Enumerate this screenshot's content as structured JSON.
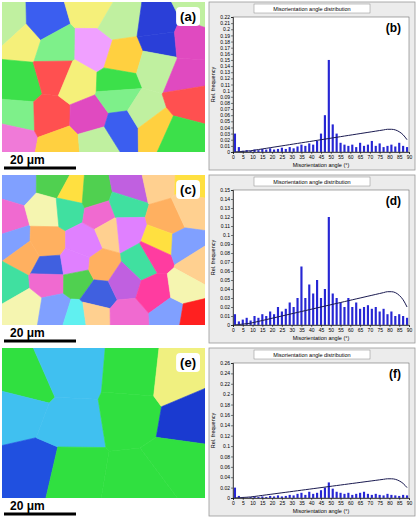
{
  "figure": {
    "maps": [
      {
        "label": "(a)",
        "scale_bar": "20 μm"
      },
      {
        "label": "(c)",
        "scale_bar": "20 μm"
      },
      {
        "label": "(e)",
        "scale_bar": "20 μm"
      }
    ]
  },
  "chart_data": [
    {
      "type": "bar",
      "title": "Misorientation angle distribution",
      "x_label": "Misorientation angle (°)",
      "y_label": "Rel. frequency",
      "annotations": [
        "(b)"
      ],
      "x": [
        1,
        3,
        5,
        7,
        9,
        11,
        13,
        15,
        17,
        19,
        21,
        23,
        25,
        27,
        29,
        31,
        33,
        35,
        37,
        39,
        41,
        43,
        45,
        47,
        49,
        51,
        53,
        55,
        57,
        59,
        61,
        63,
        65,
        67,
        69,
        71,
        73,
        75,
        77,
        79,
        81,
        83,
        85,
        87,
        89
      ],
      "series": [
        {
          "type": "bar",
          "color": "#2626d4",
          "values": [
            0.03,
            0.008,
            0.002,
            0.003,
            0.002,
            0.004,
            0.003,
            0.005,
            0.004,
            0.006,
            0.004,
            0.005,
            0.007,
            0.005,
            0.008,
            0.006,
            0.009,
            0.012,
            0.01,
            0.014,
            0.012,
            0.018,
            0.03,
            0.06,
            0.15,
            0.045,
            0.03,
            0.015,
            0.012,
            0.01,
            0.012,
            0.008,
            0.015,
            0.01,
            0.012,
            0.018,
            0.01,
            0.014,
            0.008,
            0.01,
            0.012,
            0.009,
            0.015,
            0.01,
            0.008
          ]
        },
        {
          "type": "line",
          "color": "#1a1a50",
          "values": [
            0.0001,
            0.0005,
            0.001,
            0.0015,
            0.002,
            0.003,
            0.004,
            0.005,
            0.006,
            0.007,
            0.008,
            0.009,
            0.01,
            0.011,
            0.012,
            0.013,
            0.014,
            0.015,
            0.016,
            0.017,
            0.018,
            0.019,
            0.02,
            0.021,
            0.022,
            0.023,
            0.024,
            0.025,
            0.026,
            0.027,
            0.028,
            0.029,
            0.03,
            0.031,
            0.032,
            0.033,
            0.034,
            0.035,
            0.036,
            0.037,
            0.037,
            0.036,
            0.033,
            0.028,
            0.02
          ]
        }
      ],
      "xlim": [
        0,
        90
      ],
      "xticks": [
        0,
        5,
        10,
        15,
        20,
        25,
        30,
        35,
        40,
        45,
        50,
        55,
        60,
        65,
        70,
        75,
        80,
        85,
        90
      ],
      "ylim": [
        0,
        0.22
      ],
      "yticks": [
        0,
        0.01,
        0.02,
        0.03,
        0.04,
        0.05,
        0.06,
        0.07,
        0.08,
        0.09,
        0.1,
        0.11,
        0.12,
        0.13,
        0.14,
        0.15,
        0.16,
        0.17,
        0.18,
        0.19,
        0.2,
        0.21,
        0.22
      ]
    },
    {
      "type": "bar",
      "title": "Misorientation angle distribution",
      "x_label": "Misorientation angle (°)",
      "y_label": "Rel. frequency",
      "annotations": [
        "(d)"
      ],
      "x": [
        1,
        3,
        5,
        7,
        9,
        11,
        13,
        15,
        17,
        19,
        21,
        23,
        25,
        27,
        29,
        31,
        33,
        35,
        37,
        39,
        41,
        43,
        45,
        47,
        49,
        51,
        53,
        55,
        57,
        59,
        61,
        63,
        65,
        67,
        69,
        71,
        73,
        75,
        77,
        79,
        81,
        83,
        85,
        87,
        89
      ],
      "series": [
        {
          "type": "bar",
          "color": "#2626d4",
          "values": [
            0.012,
            0.004,
            0.006,
            0.008,
            0.005,
            0.01,
            0.008,
            0.012,
            0.01,
            0.015,
            0.012,
            0.02,
            0.015,
            0.018,
            0.025,
            0.02,
            0.03,
            0.065,
            0.03,
            0.045,
            0.035,
            0.05,
            0.03,
            0.04,
            0.12,
            0.035,
            0.03,
            0.025,
            0.02,
            0.03,
            0.02,
            0.025,
            0.018,
            0.02,
            0.022,
            0.018,
            0.02,
            0.015,
            0.018,
            0.012,
            0.015,
            0.01,
            0.012,
            0.01,
            0.008
          ]
        },
        {
          "type": "line",
          "color": "#1a1a50",
          "values": [
            0.0001,
            0.0005,
            0.001,
            0.0015,
            0.002,
            0.003,
            0.004,
            0.005,
            0.006,
            0.007,
            0.008,
            0.009,
            0.01,
            0.011,
            0.012,
            0.013,
            0.014,
            0.015,
            0.016,
            0.017,
            0.018,
            0.019,
            0.02,
            0.021,
            0.022,
            0.023,
            0.024,
            0.025,
            0.026,
            0.027,
            0.028,
            0.029,
            0.03,
            0.031,
            0.032,
            0.033,
            0.034,
            0.035,
            0.036,
            0.037,
            0.037,
            0.036,
            0.033,
            0.028,
            0.02
          ]
        }
      ],
      "xlim": [
        0,
        90
      ],
      "xticks": [
        0,
        5,
        10,
        15,
        20,
        25,
        30,
        35,
        40,
        45,
        50,
        55,
        60,
        65,
        70,
        75,
        80,
        85,
        90
      ],
      "ylim": [
        0,
        0.15
      ],
      "yticks": [
        0,
        0.01,
        0.02,
        0.03,
        0.04,
        0.05,
        0.06,
        0.07,
        0.08,
        0.09,
        0.1,
        0.11,
        0.12,
        0.13,
        0.14,
        0.15
      ]
    },
    {
      "type": "bar",
      "title": "Misorientation angle distribution",
      "x_label": "Misorientation angle (°)",
      "y_label": "Rel. frequency",
      "annotations": [
        "(f)"
      ],
      "x": [
        1,
        3,
        5,
        7,
        9,
        11,
        13,
        15,
        17,
        19,
        21,
        23,
        25,
        27,
        29,
        31,
        33,
        35,
        37,
        39,
        41,
        43,
        45,
        47,
        49,
        51,
        53,
        55,
        57,
        59,
        61,
        63,
        65,
        67,
        69,
        71,
        73,
        75,
        77,
        79,
        81,
        83,
        85,
        87,
        89
      ],
      "series": [
        {
          "type": "bar",
          "color": "#2626d4",
          "values": [
            0.02,
            0.004,
            0.002,
            0.001,
            0.002,
            0.003,
            0.002,
            0.003,
            0.002,
            0.004,
            0.003,
            0.005,
            0.003,
            0.004,
            0.006,
            0.005,
            0.008,
            0.01,
            0.006,
            0.012,
            0.008,
            0.01,
            0.015,
            0.02,
            0.03,
            0.018,
            0.012,
            0.01,
            0.008,
            0.01,
            0.006,
            0.008,
            0.01,
            0.012,
            0.008,
            0.006,
            0.008,
            0.006,
            0.005,
            0.008,
            0.006,
            0.005,
            0.004,
            0.006,
            0.005
          ]
        },
        {
          "type": "line",
          "color": "#1a1a50",
          "values": [
            0.0001,
            0.0005,
            0.001,
            0.0015,
            0.002,
            0.003,
            0.004,
            0.005,
            0.006,
            0.007,
            0.008,
            0.009,
            0.01,
            0.011,
            0.012,
            0.013,
            0.014,
            0.015,
            0.016,
            0.017,
            0.018,
            0.019,
            0.02,
            0.021,
            0.022,
            0.023,
            0.024,
            0.025,
            0.026,
            0.027,
            0.028,
            0.029,
            0.03,
            0.031,
            0.032,
            0.033,
            0.034,
            0.035,
            0.036,
            0.037,
            0.037,
            0.036,
            0.033,
            0.028,
            0.02
          ]
        }
      ],
      "xlim": [
        0,
        90
      ],
      "xticks": [
        0,
        5,
        10,
        15,
        20,
        25,
        30,
        35,
        40,
        45,
        50,
        55,
        60,
        65,
        70,
        75,
        80,
        85,
        90
      ],
      "ylim": [
        0,
        0.26
      ],
      "yticks": [
        0,
        0.02,
        0.04,
        0.06,
        0.08,
        0.1,
        0.12,
        0.14,
        0.16,
        0.18,
        0.2,
        0.22,
        0.24,
        0.26
      ]
    }
  ]
}
